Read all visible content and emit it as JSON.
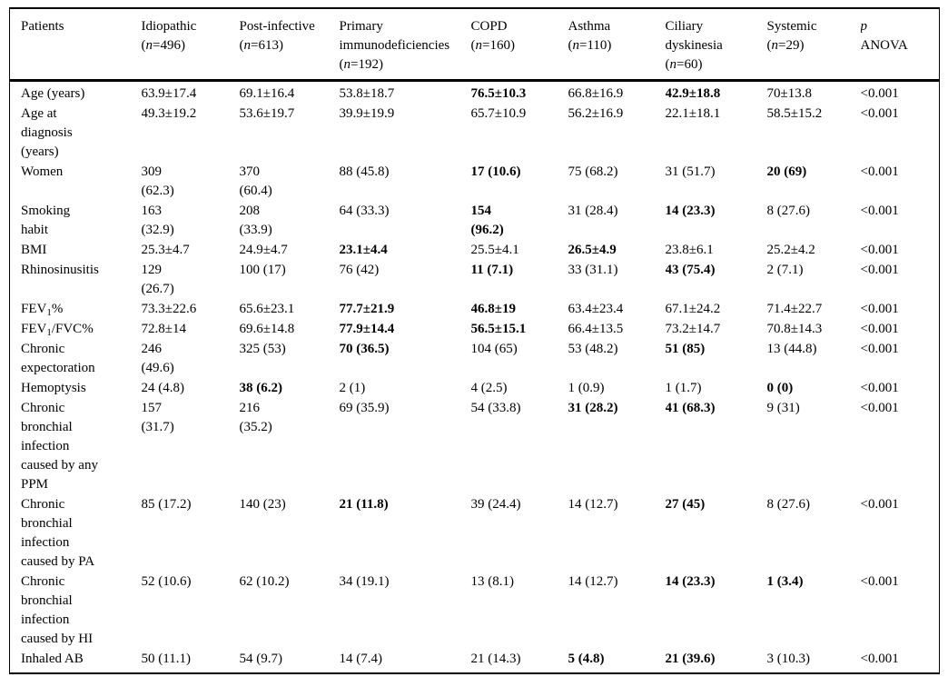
{
  "table": {
    "columns": [
      {
        "id": "patients",
        "label": "Patients"
      },
      {
        "id": "idiopathic",
        "label": "Idiopathic",
        "n": "496"
      },
      {
        "id": "post-infective",
        "label": "Post-infective",
        "n": "613"
      },
      {
        "id": "primary-immunodeficiencies",
        "label": "Primary immunodeficiencies",
        "wrap": "Primary\nimmunodeficiencies",
        "n": "192"
      },
      {
        "id": "copd",
        "label": "COPD",
        "n": "160"
      },
      {
        "id": "asthma",
        "label": "Asthma",
        "n": "110"
      },
      {
        "id": "ciliary-dyskinesia",
        "label": "Ciliary dyskinesia",
        "wrap": "Ciliary\ndyskinesia",
        "n": "60"
      },
      {
        "id": "systemic",
        "label": "Systemic",
        "n": "29"
      },
      {
        "id": "p-anova",
        "label": "p ANOVA",
        "wrap": "p\nANOVA",
        "italic_first_line": true
      }
    ],
    "rows": [
      {
        "label": "Age (years)",
        "cells": [
          "63.9±17.4",
          "69.1±16.4",
          "53.8±18.7",
          "76.5±10.3",
          "66.8±16.9",
          "42.9±18.8",
          "70±13.8",
          "<0.001"
        ],
        "bold": [
          3,
          5
        ]
      },
      {
        "label": "Age at\ndiagnosis\n(years)",
        "cells": [
          "49.3±19.2",
          "53.6±19.7",
          "39.9±19.9",
          "65.7±10.9",
          "56.2±16.9",
          "22.1±18.1",
          "58.5±15.2",
          "<0.001"
        ],
        "bold": []
      },
      {
        "label": "Women",
        "cells": [
          "309\n(62.3)",
          "370\n(60.4)",
          "88 (45.8)",
          "17 (10.6)",
          "75 (68.2)",
          "31 (51.7)",
          "20 (69)",
          "<0.001"
        ],
        "bold": [
          3,
          6
        ]
      },
      {
        "label": "Smoking\nhabit",
        "cells": [
          "163\n(32.9)",
          "208\n(33.9)",
          "64 (33.3)",
          "154\n(96.2)",
          "31 (28.4)",
          "14 (23.3)",
          "8 (27.6)",
          "<0.001"
        ],
        "bold": [
          3,
          5
        ]
      },
      {
        "label": "BMI",
        "cells": [
          "25.3±4.7",
          "24.9±4.7",
          "23.1±4.4",
          "25.5±4.1",
          "26.5±4.9",
          "23.8±6.1",
          "25.2±4.2",
          "<0.001"
        ],
        "bold": [
          2,
          4
        ]
      },
      {
        "label": "Rhinosinusitis",
        "cells": [
          "129\n(26.7)",
          "100 (17)",
          "76 (42)",
          "11 (7.1)",
          "33 (31.1)",
          "43 (75.4)",
          "2 (7.1)",
          "<0.001"
        ],
        "bold": [
          3,
          5
        ]
      },
      {
        "label": "FEV1%",
        "label_sub": {
          "pre": "FEV",
          "s": "1",
          "post": "%"
        },
        "cells": [
          "73.3±22.6",
          "65.6±23.1",
          "77.7±21.9",
          "46.8±19",
          "63.4±23.4",
          "67.1±24.2",
          "71.4±22.7",
          "<0.001"
        ],
        "bold": [
          2,
          3
        ]
      },
      {
        "label": "FEV1/FVC%",
        "label_sub": {
          "pre": "FEV",
          "s": "1",
          "post": "/FVC%"
        },
        "cells": [
          "72.8±14",
          "69.6±14.8",
          "77.9±14.4",
          "56.5±15.1",
          "66.4±13.5",
          "73.2±14.7",
          "70.8±14.3",
          "<0.001"
        ],
        "bold": [
          2,
          3
        ]
      },
      {
        "label": "Chronic\nexpectoration",
        "cells": [
          "246\n(49.6)",
          "325 (53)",
          "70 (36.5)",
          "104 (65)",
          "53 (48.2)",
          "51 (85)",
          "13 (44.8)",
          "<0.001"
        ],
        "bold": [
          2,
          5
        ]
      },
      {
        "label": "Hemoptysis",
        "cells": [
          "24 (4.8)",
          "38 (6.2)",
          "2 (1)",
          "4 (2.5)",
          "1 (0.9)",
          "1 (1.7)",
          "0 (0)",
          "<0.001"
        ],
        "bold": [
          1,
          6
        ]
      },
      {
        "label": "Chronic\nbronchial\ninfection\ncaused by any\nPPM",
        "cells": [
          "157\n(31.7)",
          "216\n(35.2)",
          "69 (35.9)",
          "54 (33.8)",
          "31 (28.2)",
          "41 (68.3)",
          "9 (31)",
          "<0.001"
        ],
        "bold": [
          4,
          5
        ]
      },
      {
        "label": "Chronic\nbronchial\ninfection\ncaused by PA",
        "cells": [
          "85 (17.2)",
          "140 (23)",
          "21 (11.8)",
          "39 (24.4)",
          "14 (12.7)",
          "27 (45)",
          "8 (27.6)",
          "<0.001"
        ],
        "bold": [
          2,
          5
        ]
      },
      {
        "label": "Chronic\nbronchial\ninfection\ncaused by HI",
        "cells": [
          "52 (10.6)",
          "62 (10.2)",
          "34 (19.1)",
          "13 (8.1)",
          "14 (12.7)",
          "14 (23.3)",
          "1 (3.4)",
          "<0.001"
        ],
        "bold": [
          5,
          6
        ]
      },
      {
        "label": "Inhaled AB",
        "cells": [
          "50 (11.1)",
          "54 (9.7)",
          "14 (7.4)",
          "21 (14.3)",
          "5 (4.8)",
          "21 (39.6)",
          "3 (10.3)",
          "<0.001"
        ],
        "bold": [
          4,
          5
        ]
      }
    ]
  }
}
